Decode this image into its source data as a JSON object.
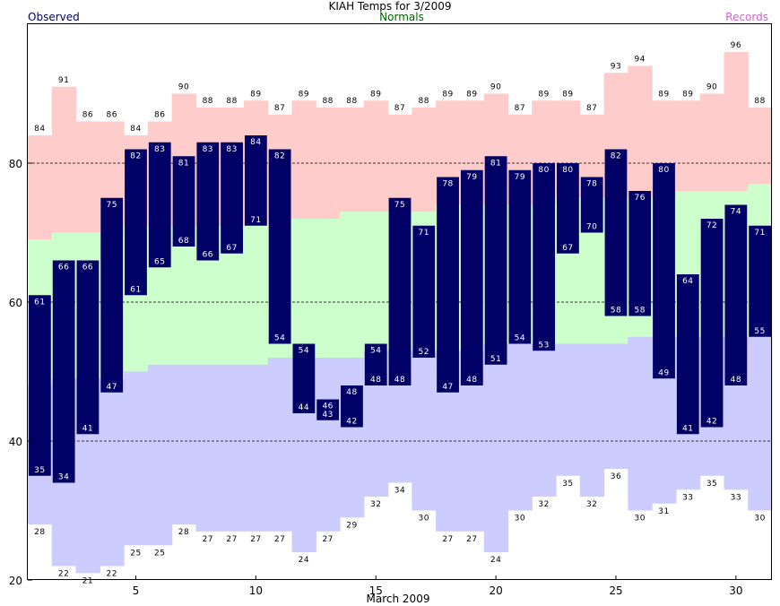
{
  "chart_data": {
    "type": "bar",
    "title": "KIAH Temps for 3/2009",
    "xlabel": "March 2009",
    "legend": {
      "observed": "Observed",
      "normals": "Normals",
      "records": "Records"
    },
    "colors": {
      "observed": "#000066",
      "normals_band": "#ccffcc",
      "record_high_band": "#ffcccc",
      "record_low_band": "#ccccff",
      "normals_text": "#006600",
      "records_text": "#cc66cc",
      "observed_text": "#000066"
    },
    "ylim": [
      20,
      100
    ],
    "yticks": [
      20,
      40,
      60,
      80
    ],
    "gridlines": [
      40,
      60,
      80
    ],
    "xticks": [
      5,
      10,
      15,
      20,
      25,
      30
    ],
    "days": [
      1,
      2,
      3,
      4,
      5,
      6,
      7,
      8,
      9,
      10,
      11,
      12,
      13,
      14,
      15,
      16,
      17,
      18,
      19,
      20,
      21,
      22,
      23,
      24,
      25,
      26,
      27,
      28,
      29,
      30,
      31
    ],
    "observed_high": [
      61,
      66,
      66,
      75,
      82,
      83,
      81,
      83,
      83,
      84,
      82,
      54,
      46,
      48,
      54,
      75,
      71,
      78,
      79,
      81,
      79,
      80,
      80,
      78,
      82,
      76,
      80,
      64,
      72,
      74,
      71
    ],
    "observed_low": [
      35,
      34,
      41,
      47,
      61,
      65,
      68,
      66,
      67,
      71,
      54,
      44,
      43,
      42,
      48,
      48,
      52,
      47,
      48,
      51,
      54,
      53,
      67,
      70,
      58,
      58,
      49,
      41,
      42,
      48,
      55
    ],
    "normal_high": [
      69,
      70,
      70,
      70,
      71,
      71,
      71,
      71,
      71,
      71,
      72,
      72,
      72,
      73,
      73,
      73,
      73,
      74,
      74,
      74,
      74,
      74,
      75,
      75,
      75,
      75,
      75,
      76,
      76,
      76,
      77
    ],
    "normal_low": [
      48,
      49,
      49,
      49,
      50,
      51,
      51,
      51,
      51,
      51,
      52,
      52,
      52,
      52,
      53,
      53,
      53,
      53,
      53,
      54,
      54,
      54,
      54,
      54,
      54,
      55,
      55,
      55,
      55,
      55,
      55
    ],
    "record_high": [
      84,
      91,
      86,
      86,
      84,
      86,
      90,
      88,
      88,
      89,
      87,
      89,
      88,
      88,
      89,
      87,
      88,
      89,
      89,
      90,
      87,
      89,
      89,
      87,
      93,
      94,
      89,
      89,
      90,
      96,
      88
    ],
    "record_low": [
      28,
      22,
      21,
      22,
      25,
      25,
      28,
      27,
      27,
      27,
      27,
      24,
      27,
      29,
      32,
      34,
      30,
      27,
      27,
      24,
      30,
      32,
      35,
      32,
      36,
      30,
      31,
      33,
      35,
      33,
      30
    ]
  }
}
